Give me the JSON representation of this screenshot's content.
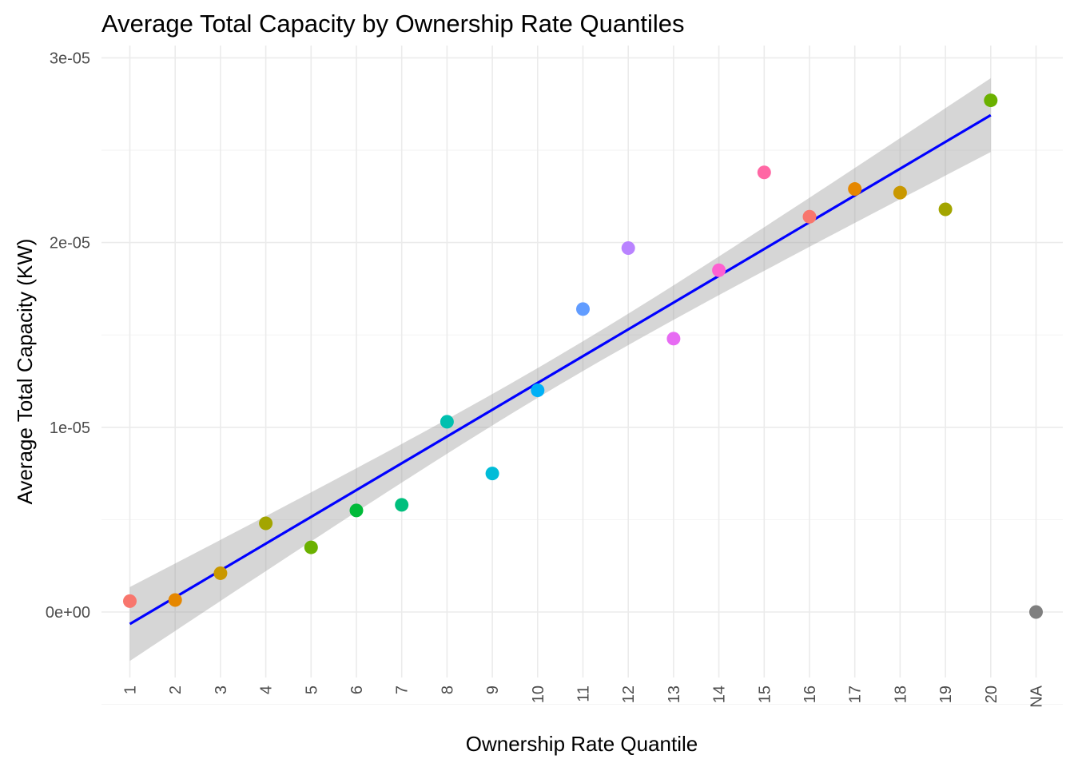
{
  "chart_data": {
    "type": "scatter",
    "title": "Average Total Capacity by Ownership Rate Quantiles",
    "xlabel": "Ownership Rate Quantile",
    "ylabel": "Average Total Capacity (KW)",
    "categories": [
      "1",
      "2",
      "3",
      "4",
      "5",
      "6",
      "7",
      "8",
      "9",
      "10",
      "11",
      "12",
      "13",
      "14",
      "15",
      "16",
      "17",
      "18",
      "19",
      "20",
      "NA"
    ],
    "values": [
      5.9e-07,
      6.5e-07,
      2.1e-06,
      4.8e-06,
      3.5e-06,
      5.5e-06,
      5.8e-06,
      1.03e-05,
      7.5e-06,
      1.2e-05,
      1.64e-05,
      1.97e-05,
      1.48e-05,
      1.85e-05,
      2.38e-05,
      2.14e-05,
      2.29e-05,
      2.27e-05,
      2.18e-05,
      2.77e-05,
      0
    ],
    "point_colors": [
      "#F8766D",
      "#E58700",
      "#C99800",
      "#A3A500",
      "#6BB100",
      "#00BA38",
      "#00BF7D",
      "#00C0AF",
      "#00BCD8",
      "#00B0F6",
      "#619CFF",
      "#B983FF",
      "#E76BF3",
      "#FD61D1",
      "#FF67A4",
      "#F8766D",
      "#E58700",
      "#C99800",
      "#A3A500",
      "#6BB100",
      "#7F7F7F"
    ],
    "trend": {
      "method": "linear fit with confidence band",
      "color": "#0000FF",
      "band_color": "#999999",
      "y_at_first": -6.5e-07,
      "y_at_last": 2.69e-05,
      "band_halfwidth_ends": 2e-06,
      "band_halfwidth_center": 8e-07
    },
    "ylim": [
      -4.2e-06,
      3.05e-05
    ],
    "y_ticks": [
      0,
      1e-05,
      2e-05,
      3e-05
    ],
    "y_tick_labels": [
      "0e+00",
      "1e-05",
      "2e-05",
      "3e-05"
    ],
    "grid": true,
    "legend": "none"
  }
}
